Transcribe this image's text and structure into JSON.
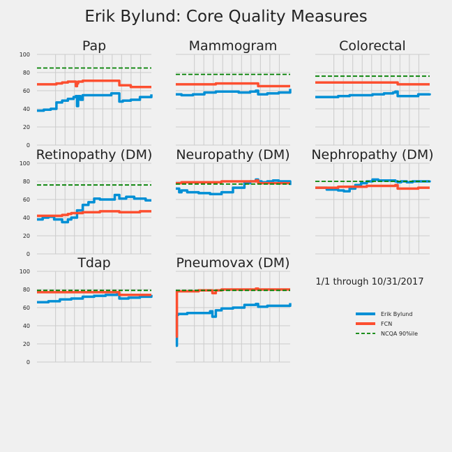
{
  "figure": {
    "title": "Erik Bylund: Core Quality Measures",
    "date_range": "1/1 through 10/31/2017"
  },
  "legend": {
    "placement": "lower-right",
    "items": [
      {
        "label": "Erik Bylund",
        "color": "#008fd5",
        "style": "solid"
      },
      {
        "label": "FCN",
        "color": "#fc4f30",
        "style": "solid"
      },
      {
        "label": "NCQA 90%ile",
        "color": "#008000",
        "style": "dashed"
      }
    ]
  },
  "chart_data": [
    {
      "type": "line",
      "title": "Pap",
      "ylim": [
        0,
        100
      ],
      "yticks": [
        0,
        20,
        40,
        60,
        80,
        100
      ],
      "grid": true,
      "x": [
        0,
        0.06,
        0.12,
        0.17,
        0.22,
        0.27,
        0.32,
        0.34,
        0.35,
        0.36,
        0.38,
        0.4,
        0.5,
        0.6,
        0.65,
        0.7,
        0.72,
        0.75,
        0.82,
        0.9,
        1.0
      ],
      "series": [
        {
          "name": "Erik Bylund",
          "color": "#008fd5",
          "values": [
            38,
            39,
            40,
            47,
            49,
            51,
            53,
            54,
            43,
            54,
            50,
            55,
            55,
            55,
            57,
            57,
            48,
            49,
            50,
            53,
            56
          ]
        },
        {
          "name": "FCN",
          "color": "#fc4f30",
          "values": [
            67,
            67,
            67,
            68,
            69,
            70,
            70,
            65,
            68,
            70,
            70,
            71,
            71,
            71,
            71,
            71,
            66,
            66,
            64,
            64,
            64
          ]
        },
        {
          "name": "NCQA 90%ile",
          "color": "#008000",
          "dashed": true,
          "constant": 85
        }
      ]
    },
    {
      "type": "line",
      "title": "Mammogram",
      "ylim": [
        0,
        100
      ],
      "grid": true,
      "x": [
        0,
        0.05,
        0.15,
        0.25,
        0.35,
        0.45,
        0.55,
        0.65,
        0.7,
        0.72,
        0.75,
        0.8,
        0.9,
        1.0
      ],
      "series": [
        {
          "name": "Erik Bylund",
          "color": "#008fd5",
          "values": [
            56,
            55,
            56,
            58,
            59,
            59,
            58,
            59,
            60,
            56,
            56,
            57,
            58,
            62
          ]
        },
        {
          "name": "FCN",
          "color": "#fc4f30",
          "values": [
            67,
            67,
            67,
            67,
            68,
            68,
            68,
            68,
            68,
            65,
            65,
            65,
            65,
            65
          ]
        },
        {
          "name": "NCQA 90%ile",
          "color": "#008000",
          "dashed": true,
          "constant": 78
        }
      ]
    },
    {
      "type": "line",
      "title": "Colorectal",
      "ylim": [
        0,
        100
      ],
      "grid": true,
      "x": [
        0,
        0.1,
        0.2,
        0.3,
        0.4,
        0.5,
        0.6,
        0.68,
        0.7,
        0.72,
        0.8,
        0.9,
        1.0
      ],
      "series": [
        {
          "name": "Erik Bylund",
          "color": "#008fd5",
          "values": [
            53,
            53,
            54,
            55,
            55,
            56,
            57,
            58,
            59,
            54,
            54,
            56,
            57
          ]
        },
        {
          "name": "FCN",
          "color": "#fc4f30",
          "values": [
            69,
            69,
            69,
            69,
            69,
            69,
            69,
            69,
            69,
            67,
            67,
            67,
            67
          ]
        },
        {
          "name": "NCQA 90%ile",
          "color": "#008000",
          "dashed": true,
          "constant": 76
        }
      ]
    },
    {
      "type": "line",
      "title": "Retinopathy (DM)",
      "ylim": [
        0,
        100
      ],
      "yticks": [
        0,
        20,
        40,
        60,
        80,
        100
      ],
      "grid": true,
      "x": [
        0,
        0.05,
        0.1,
        0.15,
        0.22,
        0.27,
        0.3,
        0.35,
        0.4,
        0.45,
        0.5,
        0.55,
        0.6,
        0.68,
        0.72,
        0.78,
        0.85,
        0.9,
        0.95,
        1.0
      ],
      "series": [
        {
          "name": "Erik Bylund",
          "color": "#008fd5",
          "values": [
            38,
            40,
            41,
            38,
            35,
            38,
            40,
            48,
            54,
            57,
            61,
            60,
            60,
            65,
            61,
            63,
            61,
            61,
            59,
            59
          ]
        },
        {
          "name": "FCN",
          "color": "#fc4f30",
          "values": [
            42,
            42,
            42,
            42,
            43,
            44,
            45,
            45,
            46,
            46,
            46,
            47,
            47,
            47,
            46,
            46,
            46,
            47,
            47,
            47
          ]
        },
        {
          "name": "NCQA 90%ile",
          "color": "#008000",
          "dashed": true,
          "constant": 76
        }
      ]
    },
    {
      "type": "line",
      "title": "Neuropathy (DM)",
      "ylim": [
        0,
        100
      ],
      "grid": true,
      "x": [
        0,
        0.03,
        0.05,
        0.1,
        0.2,
        0.3,
        0.35,
        0.4,
        0.5,
        0.6,
        0.65,
        0.7,
        0.72,
        0.75,
        0.8,
        0.85,
        0.9,
        1.0
      ],
      "series": [
        {
          "name": "Erik Bylund",
          "color": "#008fd5",
          "values": [
            72,
            68,
            70,
            68,
            67,
            66,
            66,
            68,
            73,
            78,
            80,
            82,
            80,
            79,
            80,
            81,
            80,
            76
          ]
        },
        {
          "name": "FCN",
          "color": "#fc4f30",
          "values": [
            78,
            78,
            79,
            79,
            79,
            79,
            79,
            80,
            80,
            80,
            80,
            81,
            78,
            78,
            78,
            78,
            78,
            78
          ]
        },
        {
          "name": "NCQA 90%ile",
          "color": "#008000",
          "dashed": true,
          "constant": 77
        }
      ]
    },
    {
      "type": "line",
      "title": "Nephropathy (DM)",
      "ylim": [
        0,
        100
      ],
      "grid": true,
      "x": [
        0,
        0.1,
        0.2,
        0.25,
        0.3,
        0.35,
        0.4,
        0.45,
        0.5,
        0.55,
        0.6,
        0.7,
        0.72,
        0.75,
        0.8,
        0.85,
        0.9,
        1.0
      ],
      "series": [
        {
          "name": "Erik Bylund",
          "color": "#008fd5",
          "values": [
            73,
            71,
            70,
            69,
            72,
            76,
            78,
            80,
            82,
            81,
            81,
            80,
            79,
            80,
            79,
            80,
            80,
            81
          ]
        },
        {
          "name": "FCN",
          "color": "#fc4f30",
          "values": [
            73,
            73,
            74,
            74,
            74,
            74,
            74,
            75,
            75,
            75,
            75,
            76,
            72,
            72,
            72,
            72,
            73,
            73
          ]
        },
        {
          "name": "NCQA 90%ile",
          "color": "#008000",
          "dashed": true,
          "constant": 80
        }
      ]
    },
    {
      "type": "line",
      "title": "Tdap",
      "ylim": [
        0,
        100
      ],
      "yticks": [
        0,
        20,
        40,
        60,
        80,
        100
      ],
      "grid": true,
      "x": [
        0,
        0.1,
        0.2,
        0.3,
        0.4,
        0.5,
        0.6,
        0.7,
        0.72,
        0.75,
        0.8,
        0.9,
        1.0
      ],
      "series": [
        {
          "name": "Erik Bylund",
          "color": "#008fd5",
          "values": [
            66,
            67,
            69,
            70,
            72,
            73,
            74,
            75,
            70,
            70,
            71,
            72,
            74
          ]
        },
        {
          "name": "FCN",
          "color": "#fc4f30",
          "values": [
            77,
            77,
            77,
            77,
            77,
            77,
            77,
            77,
            74,
            74,
            74,
            74,
            74
          ]
        },
        {
          "name": "NCQA 90%ile",
          "color": "#008000",
          "dashed": true,
          "constant": 79
        }
      ]
    },
    {
      "type": "line",
      "title": "Pneumovax (DM)",
      "ylim": [
        0,
        100
      ],
      "grid": true,
      "x": [
        0,
        0.01,
        0.02,
        0.05,
        0.1,
        0.2,
        0.3,
        0.32,
        0.35,
        0.4,
        0.5,
        0.6,
        0.7,
        0.72,
        0.75,
        0.8,
        0.9,
        1.0
      ],
      "series": [
        {
          "name": "Erik Bylund",
          "color": "#008fd5",
          "values": [
            18,
            52,
            53,
            53,
            54,
            54,
            56,
            50,
            57,
            59,
            60,
            63,
            64,
            61,
            61,
            62,
            62,
            65
          ]
        },
        {
          "name": "FCN",
          "color": "#fc4f30",
          "values": [
            28,
            78,
            78,
            78,
            78,
            79,
            79,
            76,
            79,
            80,
            80,
            80,
            81,
            80,
            80,
            80,
            80,
            80
          ]
        },
        {
          "name": "NCQA 90%ile",
          "color": "#008000",
          "dashed": true,
          "constant": 79
        }
      ]
    }
  ]
}
